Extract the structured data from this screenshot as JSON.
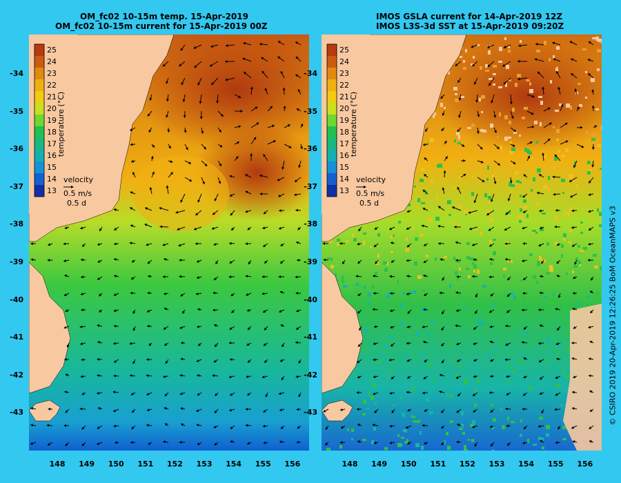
{
  "left_panel": {
    "title_line1": "OM_fc02 10-15m temp. 15-Apr-2019",
    "title_line2": "OM_fc02 10-15m current for 15-Apr-2019 00Z"
  },
  "right_panel": {
    "title_line1": "IMOS GSLA current for 14-Apr-2019 12Z",
    "title_line2": "IMOS L3S-3d SST at 15-Apr-2019 09:20Z"
  },
  "colorbar": {
    "label": "temperature (°C)",
    "ticks": [
      "25",
      "24",
      "23",
      "22",
      "21",
      "20",
      "19",
      "18",
      "17",
      "16",
      "15",
      "14",
      "13"
    ],
    "colors": [
      "#b83a10",
      "#cc5a10",
      "#e08a10",
      "#f0b010",
      "#f2cc10",
      "#c8e020",
      "#6cd830",
      "#22c050",
      "#18b880",
      "#12b0b0",
      "#1890d8",
      "#1460d0",
      "#1030a8"
    ]
  },
  "velocity_legend": {
    "title": "velocity",
    "speed": "0.5 m/s",
    "duration": "0.5 d"
  },
  "lat_ticks": [
    "-34",
    "-35",
    "-36",
    "-37",
    "-38",
    "-39",
    "-40",
    "-41",
    "-42",
    "-43"
  ],
  "lon_ticks": [
    "148",
    "149",
    "150",
    "151",
    "152",
    "153",
    "154",
    "155",
    "156"
  ],
  "credit": "© CSIRO 2019   20-Apr-2019 12:26:25 BoM OceanMAPS v3",
  "colors": {
    "background": "#33c8f0",
    "land": "#f8c8a0",
    "arrow": "#000000"
  }
}
